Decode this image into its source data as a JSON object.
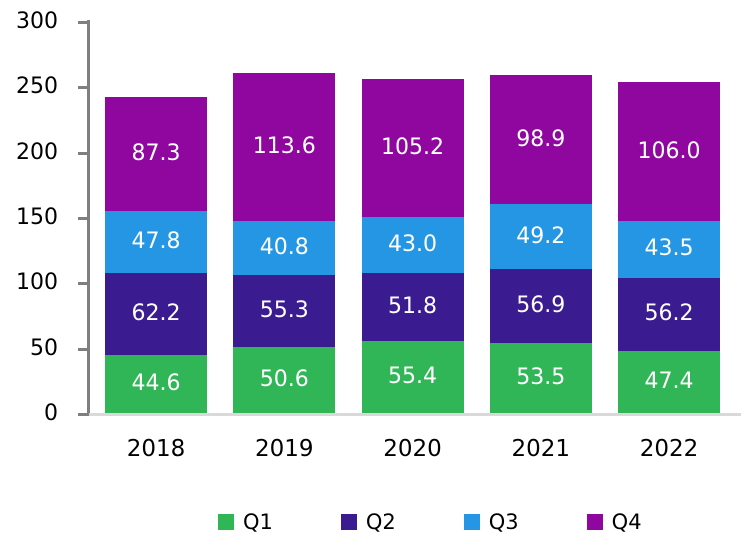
{
  "chart_data": {
    "type": "bar",
    "stacked": true,
    "title": "",
    "xlabel": "",
    "ylabel": "",
    "categories": [
      "2018",
      "2019",
      "2020",
      "2021",
      "2022"
    ],
    "series": [
      {
        "name": "Q1",
        "color": "#30B656",
        "values": [
          44.6,
          50.6,
          55.4,
          53.5,
          47.4
        ]
      },
      {
        "name": "Q2",
        "color": "#3B1B90",
        "values": [
          62.2,
          55.3,
          51.8,
          56.9,
          56.2
        ]
      },
      {
        "name": "Q3",
        "color": "#2496E3",
        "values": [
          47.8,
          40.8,
          43.0,
          49.2,
          43.5
        ]
      },
      {
        "name": "Q4",
        "color": "#90079F",
        "values": [
          87.3,
          113.6,
          105.2,
          98.9,
          106.0
        ]
      }
    ],
    "ylim": [
      0,
      300
    ],
    "yticks": [
      0,
      50,
      100,
      150,
      200,
      250,
      300
    ],
    "grid": false,
    "data_labels": true,
    "data_label_decimals": 1,
    "data_label_color": "#FFFFFF",
    "legend_position": "bottom",
    "axis_line_color": "#7F7F7F",
    "baseline_color": "#D9D9D9",
    "text_color": "#000000"
  }
}
